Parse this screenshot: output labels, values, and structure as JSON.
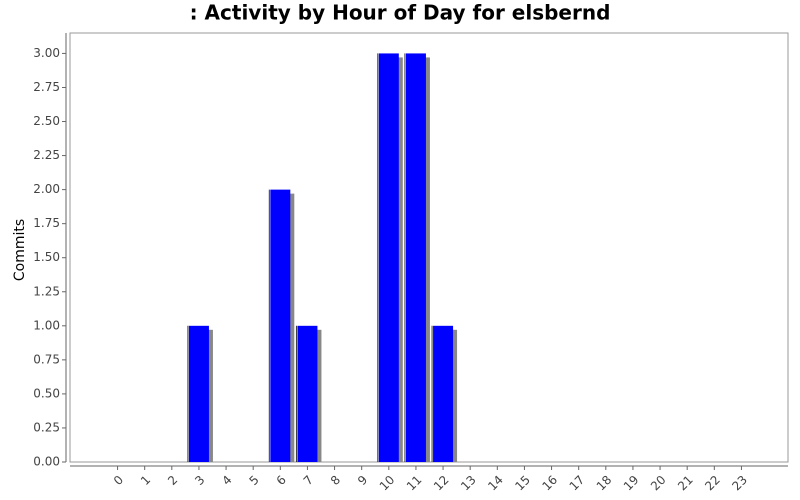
{
  "chart_data": {
    "type": "bar",
    "title": ": Activity by Hour of Day for elsbernd",
    "y_label": "Commits",
    "categories": [
      "0",
      "1",
      "2",
      "3",
      "4",
      "5",
      "6",
      "7",
      "8",
      "9",
      "10",
      "11",
      "12",
      "13",
      "14",
      "15",
      "16",
      "17",
      "18",
      "19",
      "20",
      "21",
      "22",
      "23"
    ],
    "values": [
      0,
      0,
      0,
      1,
      0,
      0,
      2,
      1,
      0,
      0,
      3,
      3,
      1,
      0,
      0,
      0,
      0,
      0,
      0,
      0,
      0,
      0,
      0,
      0
    ],
    "color": "#0000ff",
    "ylim": [
      0,
      3.15
    ],
    "yticks": [
      {
        "value": 0,
        "label": "0.00"
      },
      {
        "value": 0.25,
        "label": "0.25"
      },
      {
        "value": 0.5,
        "label": "0.50"
      },
      {
        "value": 0.75,
        "label": "0.75"
      },
      {
        "value": 1,
        "label": "1.00"
      },
      {
        "value": 1.25,
        "label": "1.25"
      },
      {
        "value": 1.5,
        "label": "1.50"
      },
      {
        "value": 1.75,
        "label": "1.75"
      },
      {
        "value": 2,
        "label": "2.00"
      },
      {
        "value": 2.25,
        "label": "2.25"
      },
      {
        "value": 2.5,
        "label": "2.50"
      },
      {
        "value": 2.75,
        "label": "2.75"
      },
      {
        "value": 3,
        "label": "3.00"
      }
    ]
  }
}
